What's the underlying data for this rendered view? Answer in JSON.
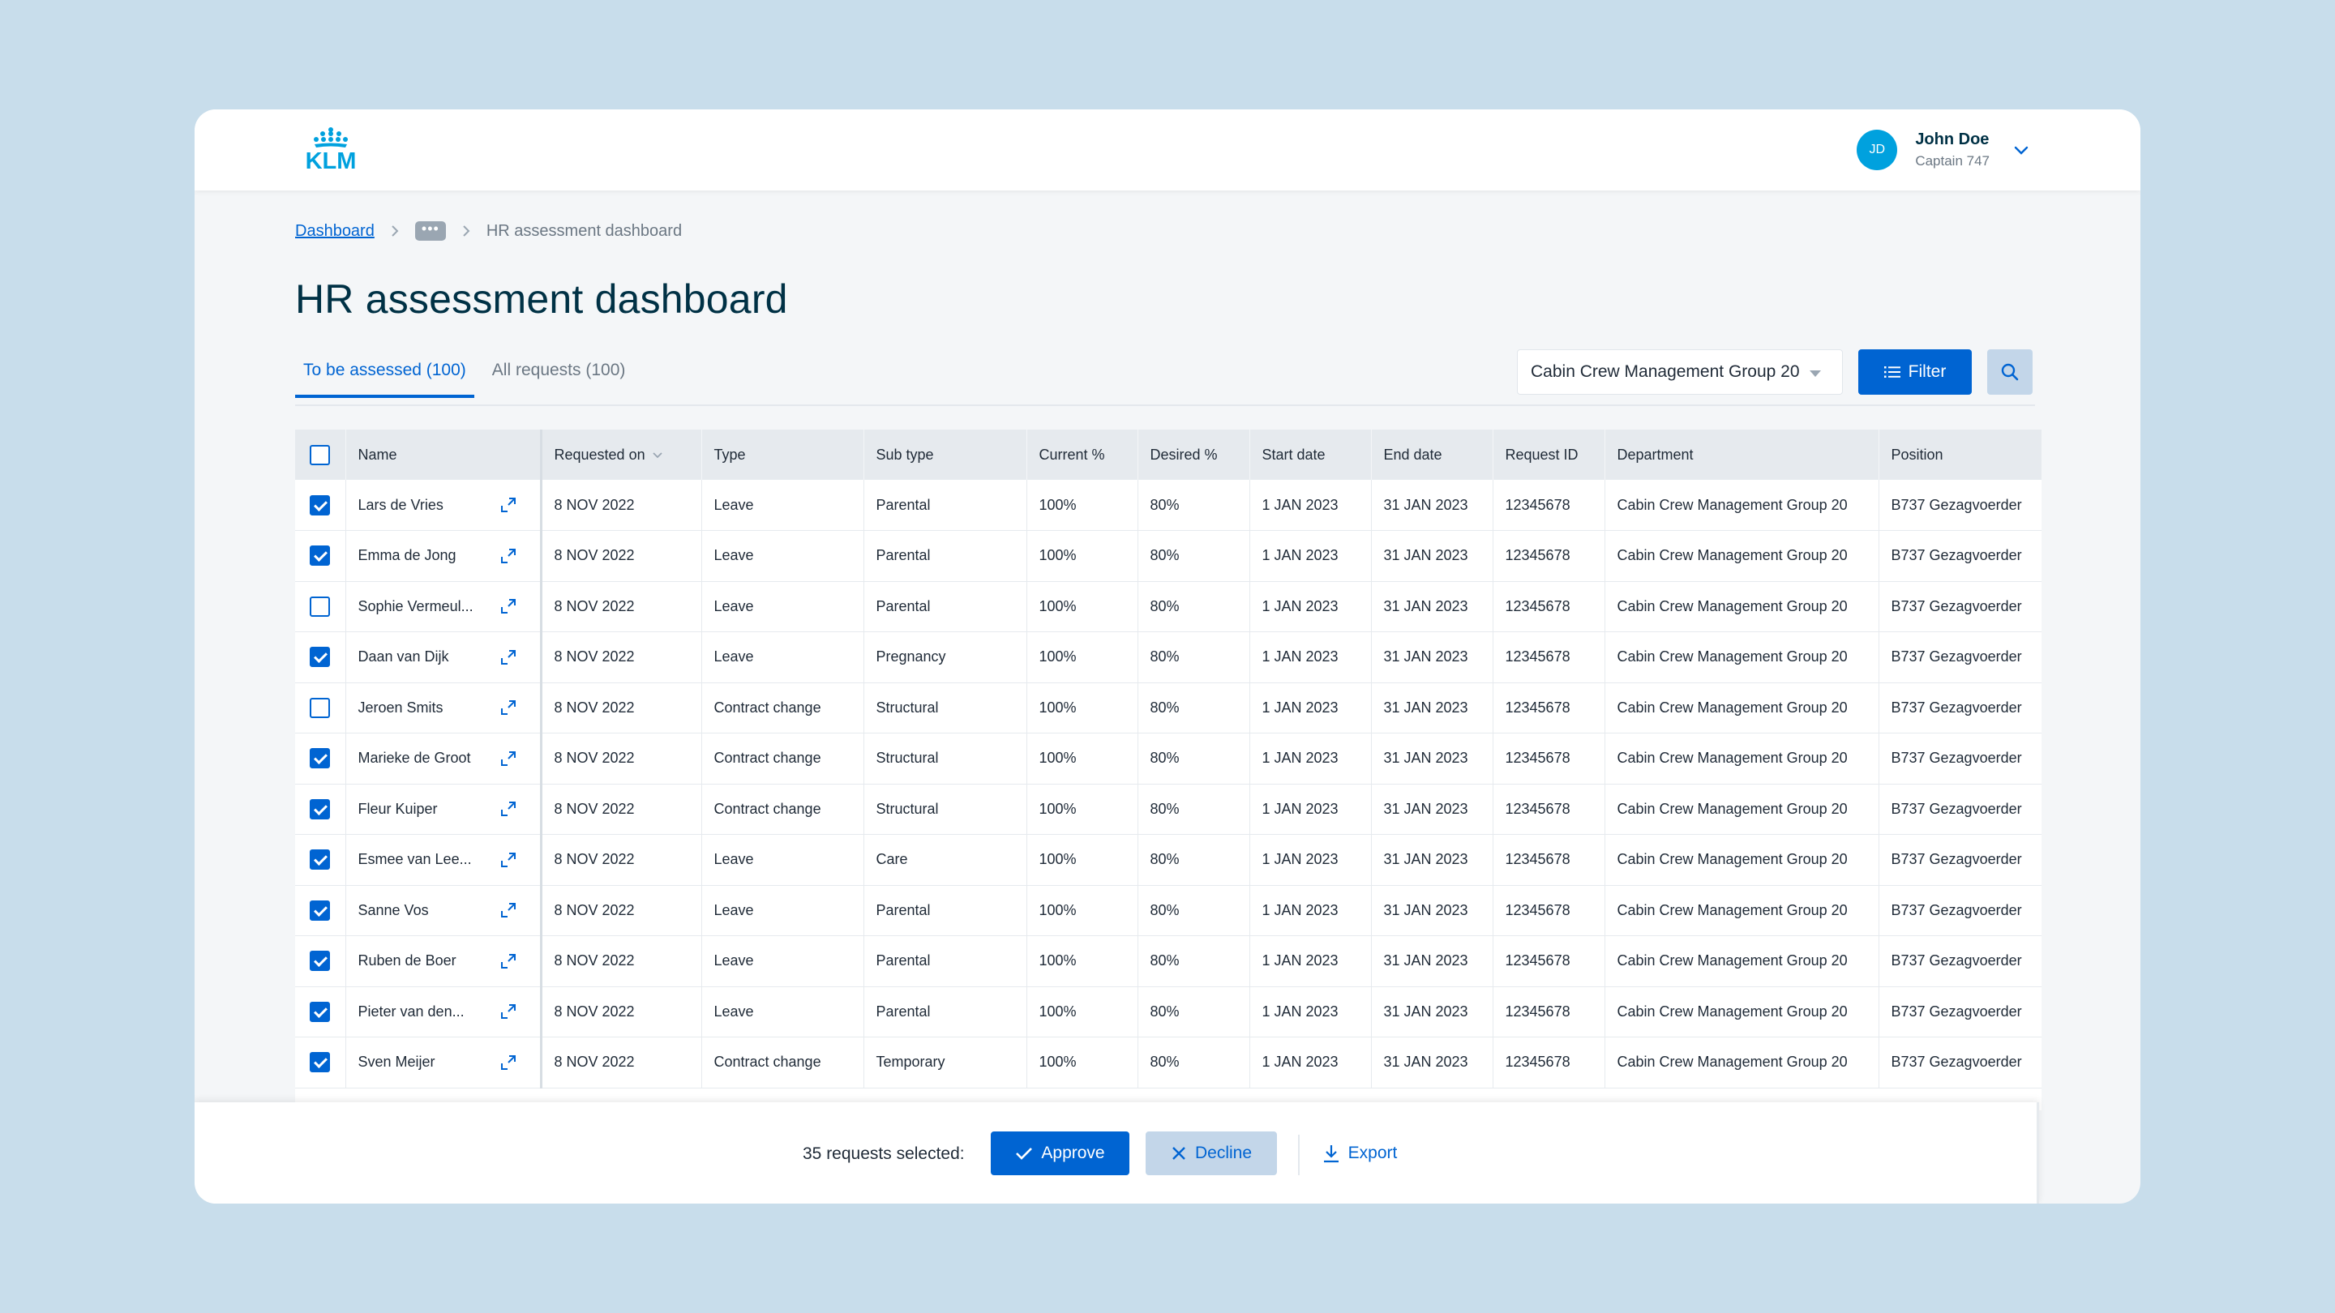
{
  "header": {
    "logo_text": "KLM",
    "user": {
      "initials": "JD",
      "name": "John Doe",
      "role": "Captain 747"
    }
  },
  "breadcrumb": {
    "root": "Dashboard",
    "more": "•••",
    "current": "HR assessment dashboard"
  },
  "page_title": "HR assessment dashboard",
  "tabs": [
    {
      "label": "To be assessed (100)",
      "active": true
    },
    {
      "label": "All requests (100)",
      "active": false
    }
  ],
  "toolbar": {
    "department_select": "Cabin Crew Management Group 20",
    "filter_label": "Filter"
  },
  "table": {
    "columns": [
      "Name",
      "Requested on",
      "Type",
      "Sub type",
      "Current %",
      "Desired %",
      "Start date",
      "End date",
      "Request ID",
      "Department",
      "Position"
    ],
    "rows": [
      {
        "checked": true,
        "name": "Lars de Vries",
        "requested": "8 NOV 2022",
        "type": "Leave",
        "subtype": "Parental",
        "current": "100%",
        "desired": "80%",
        "start": "1 JAN 2023",
        "end": "31 JAN 2023",
        "id": "12345678",
        "dept": "Cabin Crew Management Group 20",
        "position": "B737 Gezagvoerder"
      },
      {
        "checked": true,
        "name": "Emma de Jong",
        "requested": "8 NOV 2022",
        "type": "Leave",
        "subtype": "Parental",
        "current": "100%",
        "desired": "80%",
        "start": "1 JAN 2023",
        "end": "31 JAN 2023",
        "id": "12345678",
        "dept": "Cabin Crew Management Group 20",
        "position": "B737 Gezagvoerder"
      },
      {
        "checked": false,
        "name": "Sophie Vermeul...",
        "requested": "8 NOV 2022",
        "type": "Leave",
        "subtype": "Parental",
        "current": "100%",
        "desired": "80%",
        "start": "1 JAN 2023",
        "end": "31 JAN 2023",
        "id": "12345678",
        "dept": "Cabin Crew Management Group 20",
        "position": "B737 Gezagvoerder"
      },
      {
        "checked": true,
        "name": "Daan van Dijk",
        "requested": "8 NOV 2022",
        "type": "Leave",
        "subtype": "Pregnancy",
        "current": "100%",
        "desired": "80%",
        "start": "1 JAN 2023",
        "end": "31 JAN 2023",
        "id": "12345678",
        "dept": "Cabin Crew Management Group 20",
        "position": "B737 Gezagvoerder"
      },
      {
        "checked": false,
        "name": "Jeroen Smits",
        "requested": "8 NOV 2022",
        "type": "Contract change",
        "subtype": "Structural",
        "current": "100%",
        "desired": "80%",
        "start": "1 JAN 2023",
        "end": "31 JAN 2023",
        "id": "12345678",
        "dept": "Cabin Crew Management Group 20",
        "position": "B737 Gezagvoerder"
      },
      {
        "checked": true,
        "name": "Marieke de Groot",
        "requested": "8 NOV 2022",
        "type": "Contract change",
        "subtype": "Structural",
        "current": "100%",
        "desired": "80%",
        "start": "1 JAN 2023",
        "end": "31 JAN 2023",
        "id": "12345678",
        "dept": "Cabin Crew Management Group 20",
        "position": "B737 Gezagvoerder"
      },
      {
        "checked": true,
        "name": "Fleur Kuiper",
        "requested": "8 NOV 2022",
        "type": "Contract change",
        "subtype": "Structural",
        "current": "100%",
        "desired": "80%",
        "start": "1 JAN 2023",
        "end": "31 JAN 2023",
        "id": "12345678",
        "dept": "Cabin Crew Management Group 20",
        "position": "B737 Gezagvoerder"
      },
      {
        "checked": true,
        "name": "Esmee van Lee...",
        "requested": "8 NOV 2022",
        "type": "Leave",
        "subtype": "Care",
        "current": "100%",
        "desired": "80%",
        "start": "1 JAN 2023",
        "end": "31 JAN 2023",
        "id": "12345678",
        "dept": "Cabin Crew Management Group 20",
        "position": "B737 Gezagvoerder"
      },
      {
        "checked": true,
        "name": "Sanne Vos",
        "requested": "8 NOV 2022",
        "type": "Leave",
        "subtype": "Parental",
        "current": "100%",
        "desired": "80%",
        "start": "1 JAN 2023",
        "end": "31 JAN 2023",
        "id": "12345678",
        "dept": "Cabin Crew Management Group 20",
        "position": "B737 Gezagvoerder"
      },
      {
        "checked": true,
        "name": "Ruben de Boer",
        "requested": "8 NOV 2022",
        "type": "Leave",
        "subtype": "Parental",
        "current": "100%",
        "desired": "80%",
        "start": "1 JAN 2023",
        "end": "31 JAN 2023",
        "id": "12345678",
        "dept": "Cabin Crew Management Group 20",
        "position": "B737 Gezagvoerder"
      },
      {
        "checked": true,
        "name": "Pieter van den...",
        "requested": "8 NOV 2022",
        "type": "Leave",
        "subtype": "Parental",
        "current": "100%",
        "desired": "80%",
        "start": "1 JAN 2023",
        "end": "31 JAN 2023",
        "id": "12345678",
        "dept": "Cabin Crew Management Group 20",
        "position": "B737 Gezagvoerder"
      },
      {
        "checked": true,
        "name": "Sven Meijer",
        "requested": "8 NOV 2022",
        "type": "Contract change",
        "subtype": "Temporary",
        "current": "100%",
        "desired": "80%",
        "start": "1 JAN 2023",
        "end": "31 JAN 2023",
        "id": "12345678",
        "dept": "Cabin Crew Management Group 20",
        "position": "B737 Gezagvoerder"
      }
    ]
  },
  "action_bar": {
    "selected_text": "35 requests selected:",
    "approve_label": "Approve",
    "decline_label": "Decline",
    "export_label": "Export"
  },
  "colors": {
    "brand": "#00a1de",
    "primary": "#0064d2",
    "secondary_bg": "#c3d6e9"
  },
  "icons": [
    "klm-logo-icon",
    "chevron-down-icon",
    "chevron-right-icon",
    "more-icon",
    "filter-list-icon",
    "search-icon",
    "checkbox-icon",
    "expand-icon",
    "sort-down-icon",
    "check-icon",
    "close-icon",
    "download-icon"
  ]
}
